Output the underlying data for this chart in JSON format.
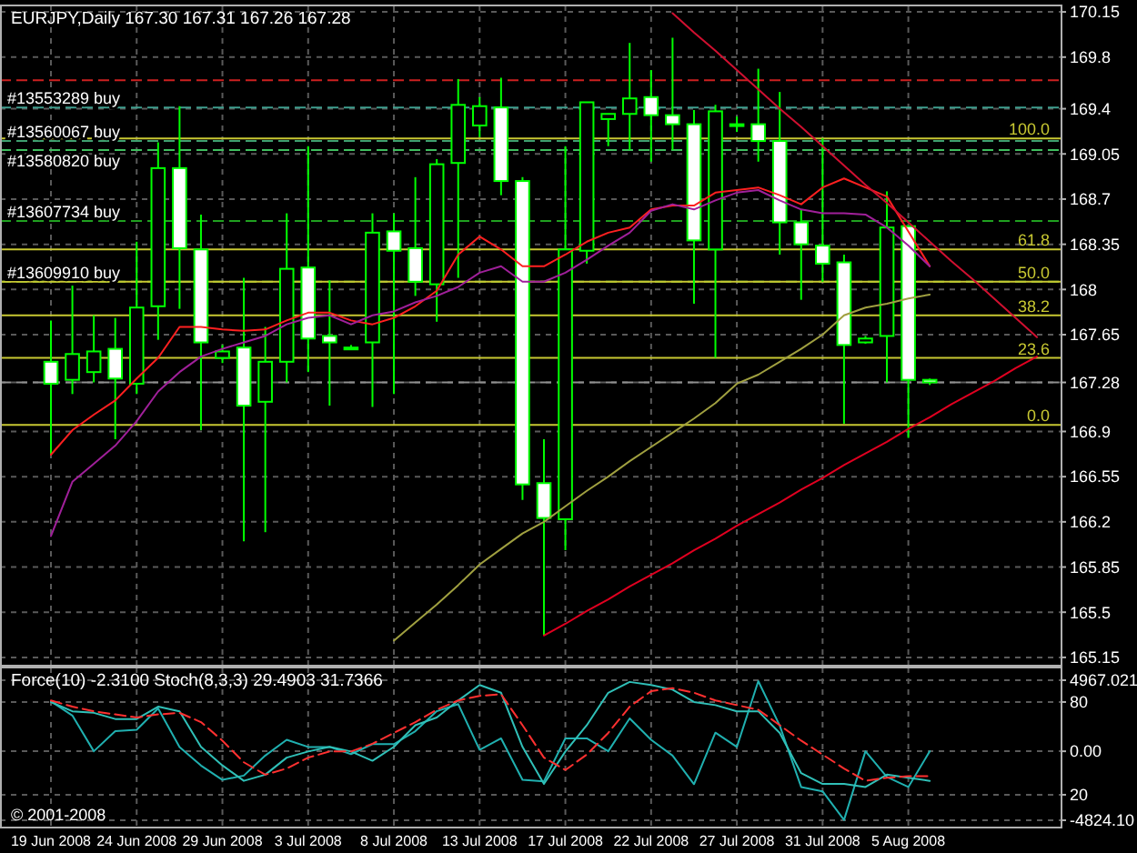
{
  "chart_data": [
    {
      "type": "candlestick",
      "title": "EURJPY,Daily  167.30 167.31 167.26 167.28",
      "categories": [
        null,
        null,
        null,
        null,
        null,
        null,
        null,
        null,
        null,
        null,
        null,
        null,
        null,
        null,
        null,
        null,
        null,
        null,
        null,
        null,
        null,
        null,
        null,
        null,
        null,
        null,
        null,
        null,
        null,
        null,
        null,
        null,
        null,
        null,
        null,
        null,
        null,
        null,
        null,
        null,
        null,
        null,
        null,
        null,
        null,
        null,
        null
      ],
      "ohlc": [
        [
          167.44,
          167.76,
          166.72,
          167.27
        ],
        [
          167.3,
          168.03,
          167.19,
          167.5
        ],
        [
          167.36,
          167.8,
          167.28,
          167.52
        ],
        [
          167.54,
          167.78,
          166.84,
          167.31
        ],
        [
          167.27,
          168.37,
          167.19,
          167.86
        ],
        [
          167.87,
          169.14,
          167.61,
          168.94
        ],
        [
          168.94,
          169.42,
          167.85,
          168.32
        ],
        [
          168.31,
          168.58,
          166.91,
          167.59
        ],
        [
          167.47,
          167.57,
          167.43,
          167.52
        ],
        [
          167.55,
          168.09,
          166.05,
          167.1
        ],
        [
          167.13,
          167.71,
          166.12,
          167.44
        ],
        [
          167.44,
          168.59,
          167.28,
          168.16
        ],
        [
          168.17,
          169.11,
          167.36,
          167.62
        ],
        [
          167.64,
          168.07,
          167.1,
          167.59
        ],
        [
          167.55,
          167.57,
          167.54,
          167.55
        ],
        [
          167.59,
          168.59,
          167.09,
          168.44
        ],
        [
          168.45,
          168.59,
          167.19,
          168.3
        ],
        [
          168.32,
          168.87,
          167.95,
          168.06
        ],
        [
          168.04,
          169.01,
          167.75,
          168.97
        ],
        [
          168.98,
          169.63,
          168.09,
          169.43
        ],
        [
          169.27,
          169.49,
          169.18,
          169.42
        ],
        [
          169.41,
          169.64,
          168.73,
          168.84
        ],
        [
          168.84,
          168.87,
          166.37,
          166.49
        ],
        [
          166.5,
          166.84,
          165.32,
          166.23
        ],
        [
          166.22,
          169.11,
          165.98,
          168.31
        ],
        [
          168.3,
          169.45,
          168.2,
          169.45
        ],
        [
          169.32,
          169.36,
          169.11,
          169.36
        ],
        [
          169.36,
          169.91,
          169.08,
          169.48
        ],
        [
          169.49,
          169.7,
          168.99,
          169.35
        ],
        [
          169.35,
          169.95,
          169.08,
          169.28
        ],
        [
          169.28,
          169.39,
          167.89,
          168.38
        ],
        [
          168.31,
          169.43,
          167.47,
          169.38
        ],
        [
          169.28,
          169.34,
          169.22,
          169.28
        ],
        [
          169.28,
          169.71,
          168.99,
          169.15
        ],
        [
          169.15,
          169.53,
          168.27,
          168.52
        ],
        [
          168.52,
          168.62,
          167.92,
          168.35
        ],
        [
          168.34,
          169.17,
          168.06,
          168.2
        ],
        [
          168.21,
          168.27,
          166.96,
          167.57
        ],
        [
          167.59,
          167.64,
          167.58,
          167.62
        ],
        [
          167.64,
          168.76,
          167.28,
          168.48
        ],
        [
          168.49,
          168.49,
          166.85,
          167.3
        ],
        [
          167.3,
          167.31,
          167.26,
          167.28
        ],
        null,
        null,
        null,
        null,
        null
      ],
      "series": [
        {
          "type": "line",
          "color": "#ff2020",
          "values": [
            166.72,
            166.91,
            167.03,
            167.14,
            167.31,
            167.47,
            167.71,
            167.71,
            167.69,
            167.68,
            167.69,
            167.76,
            167.82,
            167.82,
            167.76,
            167.73,
            167.78,
            167.87,
            167.99,
            168.27,
            168.41,
            168.31,
            168.18,
            168.18,
            168.27,
            168.37,
            168.44,
            168.48,
            168.62,
            168.65,
            168.65,
            168.75,
            168.77,
            168.79,
            168.73,
            168.66,
            168.79,
            168.86,
            168.79,
            168.72,
            168.45,
            168.18,
            null,
            null,
            null,
            null,
            null
          ]
        },
        {
          "type": "line",
          "color": "#a0209a",
          "values": [
            166.09,
            166.51,
            166.65,
            166.79,
            166.98,
            167.21,
            167.36,
            167.48,
            167.54,
            167.59,
            167.64,
            167.73,
            167.78,
            167.8,
            167.73,
            167.8,
            167.83,
            167.9,
            167.95,
            168.02,
            168.13,
            168.18,
            168.06,
            168.06,
            168.13,
            168.23,
            168.34,
            168.44,
            168.61,
            168.66,
            168.62,
            168.69,
            168.75,
            168.77,
            168.69,
            168.62,
            168.59,
            168.59,
            168.58,
            168.48,
            168.34,
            168.18,
            null,
            null,
            null,
            null,
            null
          ]
        },
        {
          "type": "line",
          "color": "#a0a040",
          "values": [
            null,
            null,
            null,
            null,
            null,
            null,
            null,
            null,
            null,
            null,
            null,
            null,
            null,
            null,
            null,
            null,
            165.28,
            165.42,
            165.56,
            165.71,
            165.87,
            165.99,
            166.11,
            166.2,
            166.32,
            166.44,
            166.55,
            166.67,
            166.78,
            166.89,
            167.0,
            167.12,
            167.27,
            167.34,
            167.44,
            167.54,
            167.65,
            167.8,
            167.86,
            167.89,
            167.93,
            167.96,
            null,
            null,
            null,
            null,
            null
          ]
        },
        {
          "type": "line",
          "color": "#d01030",
          "values": [
            null,
            null,
            null,
            null,
            null,
            null,
            null,
            null,
            null,
            null,
            null,
            null,
            null,
            null,
            null,
            null,
            null,
            null,
            null,
            null,
            null,
            null,
            null,
            null,
            null,
            null,
            null,
            null,
            null,
            170.14,
            169.99,
            169.85,
            169.7,
            169.55,
            169.4,
            169.26,
            169.11,
            168.96,
            168.81,
            168.67,
            168.52,
            168.37,
            168.22,
            168.08,
            167.93,
            167.78,
            167.63
          ]
        },
        {
          "type": "line",
          "color": "#e00020",
          "values": [
            null,
            null,
            null,
            null,
            null,
            null,
            null,
            null,
            null,
            null,
            null,
            null,
            null,
            null,
            null,
            null,
            null,
            null,
            null,
            null,
            null,
            null,
            null,
            165.32,
            165.41,
            165.51,
            165.6,
            165.7,
            165.79,
            165.88,
            165.98,
            166.07,
            166.17,
            166.26,
            166.35,
            166.45,
            166.54,
            166.64,
            166.73,
            166.82,
            166.92,
            167.01,
            167.11,
            167.2,
            167.29,
            167.39,
            167.48
          ]
        }
      ],
      "ylim": [
        165.1,
        170.2
      ],
      "yticks": [
        170.15,
        169.8,
        169.4,
        169.05,
        168.7,
        168.35,
        168,
        167.65,
        167.28,
        166.9,
        166.55,
        166.2,
        165.85,
        165.5,
        165.15
      ],
      "ref_lines": [
        {
          "axis": "y",
          "value": 169.62,
          "color": "#cc2020",
          "line_style": "dashed"
        },
        {
          "axis": "y",
          "value": 169.41,
          "label": "#13553289 buy",
          "color": "#3f9f8f",
          "line_style": "dashed"
        },
        {
          "axis": "y",
          "value": 169.15,
          "label": "#13560067 buy",
          "color": "#3f9f6f",
          "line_style": "dashed"
        },
        {
          "axis": "y",
          "value": 169.08,
          "label": "#13580820 buy",
          "color": "#3fbf5f",
          "line_style": "dashed"
        },
        {
          "axis": "y",
          "value": 168.53,
          "label": "#13607734 buy",
          "color": "#20a020",
          "line_style": "dashed"
        },
        {
          "axis": "y",
          "value": 168.06,
          "label": "#13609910 buy",
          "color": "#66cc33",
          "line_style": "dashed"
        },
        {
          "axis": "y",
          "value": 167.28,
          "color": "#909090",
          "line_style": "dashed"
        },
        {
          "axis": "y",
          "value": 169.17,
          "color": "#c8c832",
          "line_style": "solid"
        },
        {
          "axis": "y",
          "value": 168.31,
          "color": "#c8c832",
          "line_style": "solid"
        },
        {
          "axis": "y",
          "value": 168.06,
          "color": "#c8c832",
          "line_style": "solid"
        },
        {
          "axis": "y",
          "value": 167.8,
          "color": "#c8c832",
          "line_style": "solid"
        },
        {
          "axis": "y",
          "value": 167.47,
          "color": "#c8c832",
          "line_style": "solid"
        },
        {
          "axis": "y",
          "value": 166.95,
          "color": "#c8c832",
          "line_style": "solid"
        }
      ],
      "annotations": [
        {
          "text": "100.0",
          "y": 169.17
        },
        {
          "text": "61.8",
          "y": 168.31
        },
        {
          "text": "50.0",
          "y": 168.06
        },
        {
          "text": "38.2",
          "y": 167.8
        },
        {
          "text": "23.6",
          "y": 167.47
        },
        {
          "text": "0.0",
          "y": 166.95
        }
      ],
      "grid": true,
      "tick_labels": "y"
    },
    {
      "type": "line",
      "title": "Force(10) -2.3100  Stoch(8,3,3) 29.4903 31.7366",
      "categories": [
        "19 Jun 2008",
        null,
        null,
        null,
        "24 Jun 2008",
        null,
        null,
        null,
        "29 Jun 2008",
        null,
        null,
        null,
        "3 Jul 2008",
        null,
        null,
        null,
        "8 Jul 2008",
        null,
        null,
        null,
        "13 Jul 2008",
        null,
        null,
        null,
        "17 Jul 2008",
        null,
        null,
        null,
        "22 Jul 2008",
        null,
        null,
        null,
        "27 Jul 2008",
        null,
        null,
        null,
        "31 Jul 2008",
        null,
        null,
        null,
        "5 Aug 2008",
        null,
        null,
        null,
        null,
        null,
        null
      ],
      "series": [
        {
          "color": "#20b0b0",
          "values": [
            3500,
            2500,
            0,
            1400,
            1500,
            3000,
            300,
            -1000,
            -2000,
            -1700,
            -300,
            800,
            300,
            300,
            -200,
            500,
            500,
            1400,
            2800,
            3300,
            100,
            900,
            -2000,
            -2100,
            900,
            900,
            0,
            2300,
            800,
            -300,
            -2300,
            1300,
            300,
            4900,
            1800,
            -2500,
            -2800,
            -4800,
            0,
            -1800,
            -2500,
            0,
            null,
            null,
            null,
            null,
            null
          ]
        },
        {
          "color": "#30c0b8",
          "axis": "y2",
          "values": [
            80,
            74,
            73,
            69,
            69,
            77,
            74,
            51,
            39,
            29,
            33,
            44,
            48,
            51,
            48,
            42,
            51,
            65,
            70,
            81,
            91,
            86,
            51,
            27,
            48,
            65,
            86,
            93,
            91,
            88,
            80,
            78,
            74,
            74,
            60,
            34,
            27,
            27,
            25,
            33,
            31,
            29,
            null,
            null,
            null,
            null,
            null
          ]
        },
        {
          "color": "#ff3030",
          "axis": "y2",
          "line_style": "dashed",
          "values": [
            81,
            77,
            74,
            72,
            70,
            72,
            73,
            67,
            55,
            41,
            33,
            37,
            44,
            48,
            48,
            53,
            60,
            67,
            75,
            81,
            84,
            85,
            65,
            44,
            36,
            46,
            60,
            77,
            87,
            89,
            86,
            81,
            78,
            75,
            65,
            55,
            46,
            37,
            29,
            31,
            32,
            32,
            null,
            null,
            null,
            null,
            null
          ]
        }
      ],
      "ylim": [
        -4824.1,
        4967.021
      ],
      "yticks": [
        4967.021,
        {
          "value": 0,
          "label": "0.00"
        },
        {
          "value": -4824.1,
          "label": "-4824.10"
        }
      ],
      "y2lim": [
        3.5,
        94.1
      ],
      "y2ticks": [
        80,
        20
      ],
      "grid": true,
      "annotations": [
        "© 2001-2008"
      ]
    }
  ]
}
